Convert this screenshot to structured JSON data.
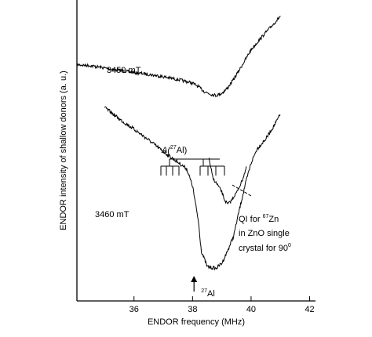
{
  "chart_data": {
    "type": "line",
    "xlabel": "ENDOR frequency (MHz)",
    "ylabel": "ENDOR intensity of shallow donors (a. u.)",
    "xlim": [
      34.05,
      42.2
    ],
    "ylim": [
      0,
      100
    ],
    "x_ticks": [
      36,
      38,
      40,
      42
    ],
    "x_tick_labels": [
      "36",
      "38",
      "40",
      "42"
    ],
    "y_ticks_shown": false,
    "series": [
      {
        "name": "3459 mT",
        "x": [
          34.05,
          34.5,
          35.0,
          35.5,
          36.0,
          36.5,
          37.0,
          37.5,
          38.0,
          38.2,
          38.4,
          38.6,
          38.8,
          39.0,
          39.2,
          39.4,
          39.6,
          39.8,
          40.0,
          40.4,
          40.8,
          41.0
        ],
        "y": [
          78.5,
          78.2,
          77.4,
          76.6,
          75.9,
          75.3,
          74.5,
          73.6,
          72.4,
          71.2,
          69.6,
          68.8,
          68.3,
          69.0,
          70.8,
          73.6,
          76.8,
          80.1,
          83.5,
          88.1,
          92.4,
          94.6
        ]
      },
      {
        "name": "3460 mT",
        "x": [
          35.0,
          35.2,
          35.5,
          36.0,
          36.5,
          37.0,
          37.4,
          37.8,
          38.0,
          38.2,
          38.3,
          38.5,
          38.8,
          39.0,
          39.2,
          39.4,
          39.6,
          39.8,
          40.0,
          40.2,
          40.5,
          40.8,
          41.0
        ],
        "y": [
          64.2,
          62.8,
          60.4,
          57.1,
          53.5,
          49.6,
          46.8,
          43.9,
          38.2,
          26.5,
          16.6,
          11.4,
          10.8,
          12.5,
          16.7,
          21.5,
          30.4,
          38.7,
          45.8,
          50.5,
          53.8,
          58.5,
          62.0
        ]
      },
      {
        "name": "QI for 67Zn in ZnO single crystal for 90°",
        "x": [
          38.55,
          38.7,
          38.85,
          39.0,
          39.1,
          39.2,
          39.3,
          39.4,
          39.55,
          39.7,
          39.85
        ],
        "y": [
          47.8,
          40.6,
          38.7,
          36.2,
          33.4,
          32.2,
          33.0,
          34.5,
          36.8,
          40.2,
          44.6
        ]
      }
    ],
    "annotations": {
      "label_3459": "3459 mT",
      "label_3460": "3460 mT",
      "hyperfine_label": "A(27Al)",
      "hyperfine_prefix": "A(",
      "hyperfine_mass": "27",
      "hyperfine_element": "Al)",
      "qi_line1_pre": "QI for ",
      "qi_line1_mass": "67",
      "qi_line1_post": "Zn",
      "qi_line2": "in ZnO single",
      "qi_line3_pre": "crystal for 90",
      "qi_line3_sup": "0",
      "arrow_x": 38.05,
      "arrow_mass": "27",
      "arrow_element": "Al"
    }
  }
}
